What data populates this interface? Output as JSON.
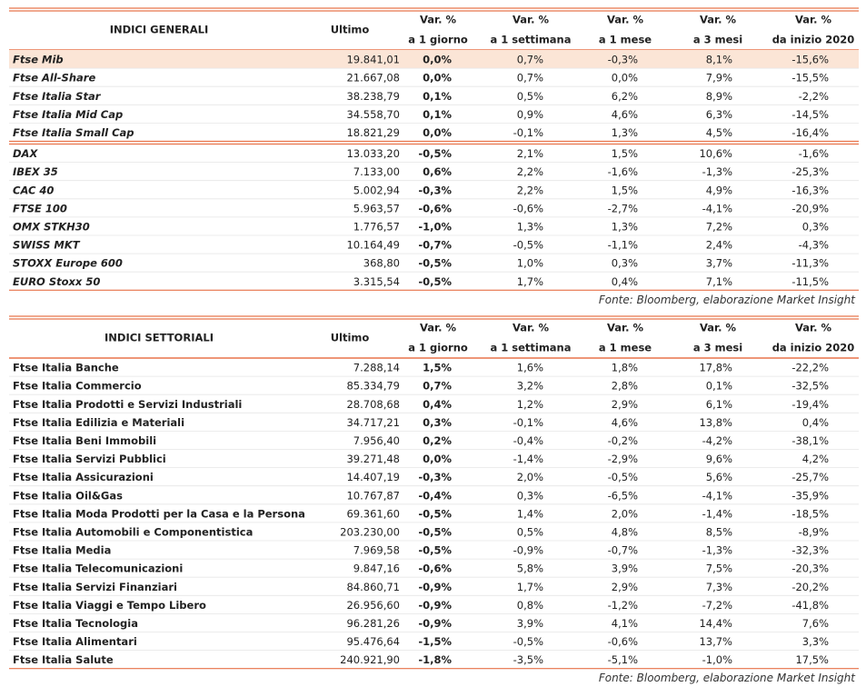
{
  "tables": [
    {
      "header": {
        "title": "INDICI GENERALI",
        "columns": [
          [
            "Ultimo"
          ],
          [
            "Var. %",
            "a 1 giorno"
          ],
          [
            "Var. %",
            "a 1 settimana"
          ],
          [
            "Var. %",
            "a 1 mese"
          ],
          [
            "Var. %",
            "a 3 mesi"
          ],
          [
            "Var. %",
            "da inizio 2020"
          ]
        ]
      },
      "groups": [
        [
          [
            "Ftse Mib",
            "19.841,01",
            "0,0%",
            "0,7%",
            "-0,3%",
            "8,1%",
            "-15,6%"
          ],
          [
            "Ftse All-Share",
            "21.667,08",
            "0,0%",
            "0,7%",
            "0,0%",
            "7,9%",
            "-15,5%"
          ],
          [
            "Ftse Italia Star",
            "38.238,79",
            "0,1%",
            "0,5%",
            "6,2%",
            "8,9%",
            "-2,2%"
          ],
          [
            "Ftse Italia Mid Cap",
            "34.558,70",
            "0,1%",
            "0,9%",
            "4,6%",
            "6,3%",
            "-14,5%"
          ],
          [
            "Ftse Italia Small Cap",
            "18.821,29",
            "0,0%",
            "-0,1%",
            "1,3%",
            "4,5%",
            "-16,4%"
          ]
        ],
        [
          [
            "DAX",
            "13.033,20",
            "-0,5%",
            "2,1%",
            "1,5%",
            "10,6%",
            "-1,6%"
          ],
          [
            "IBEX 35",
            "7.133,00",
            "0,6%",
            "2,2%",
            "-1,6%",
            "-1,3%",
            "-25,3%"
          ],
          [
            "CAC 40",
            "5.002,94",
            "-0,3%",
            "2,2%",
            "1,5%",
            "4,9%",
            "-16,3%"
          ],
          [
            "FTSE 100",
            "5.963,57",
            "-0,6%",
            "-0,6%",
            "-2,7%",
            "-4,1%",
            "-20,9%"
          ],
          [
            "OMX STKH30",
            "1.776,57",
            "-1,0%",
            "1,3%",
            "1,3%",
            "7,2%",
            "0,3%"
          ],
          [
            "SWISS MKT",
            "10.164,49",
            "-0,7%",
            "-0,5%",
            "-1,1%",
            "2,4%",
            "-4,3%"
          ],
          [
            "STOXX Europe 600",
            "368,80",
            "-0,5%",
            "1,0%",
            "0,3%",
            "3,7%",
            "-11,3%"
          ],
          [
            "EURO Stoxx 50",
            "3.315,54",
            "-0,5%",
            "1,7%",
            "0,4%",
            "7,1%",
            "-11,5%"
          ]
        ]
      ],
      "source": "Fonte: Bloomberg, elaborazione Market Insight"
    },
    {
      "header": {
        "title": "INDICI SETTORIALI",
        "columns": [
          [
            "Ultimo"
          ],
          [
            "Var. %",
            "a 1 giorno"
          ],
          [
            "Var. %",
            "a 1 settimana"
          ],
          [
            "Var. %",
            "a 1 mese"
          ],
          [
            "Var. %",
            "a 3 mesi"
          ],
          [
            "Var. %",
            "da inizio 2020"
          ]
        ]
      },
      "groups": [
        [
          [
            "Ftse Italia Banche",
            "7.288,14",
            "1,5%",
            "1,6%",
            "1,8%",
            "17,8%",
            "-22,2%"
          ],
          [
            "Ftse Italia Commercio",
            "85.334,79",
            "0,7%",
            "3,2%",
            "2,8%",
            "0,1%",
            "-32,5%"
          ],
          [
            "Ftse Italia Prodotti e Servizi Industriali",
            "28.708,68",
            "0,4%",
            "1,2%",
            "2,9%",
            "6,1%",
            "-19,4%"
          ],
          [
            "Ftse Italia Edilizia e Materiali",
            "34.717,21",
            "0,3%",
            "-0,1%",
            "4,6%",
            "13,8%",
            "0,4%"
          ],
          [
            "Ftse Italia Beni Immobili",
            "7.956,40",
            "0,2%",
            "-0,4%",
            "-0,2%",
            "-4,2%",
            "-38,1%"
          ],
          [
            "Ftse Italia Servizi Pubblici",
            "39.271,48",
            "0,0%",
            "-1,4%",
            "-2,9%",
            "9,6%",
            "4,2%"
          ],
          [
            "Ftse Italia Assicurazioni",
            "14.407,19",
            "-0,3%",
            "2,0%",
            "-0,5%",
            "5,6%",
            "-25,7%"
          ],
          [
            "Ftse Italia Oil&Gas",
            "10.767,87",
            "-0,4%",
            "0,3%",
            "-6,5%",
            "-4,1%",
            "-35,9%"
          ],
          [
            "Ftse Italia Moda Prodotti per la Casa e la Persona",
            "69.361,60",
            "-0,5%",
            "1,4%",
            "2,0%",
            "-1,4%",
            "-18,5%"
          ],
          [
            "Ftse Italia Automobili e Componentistica",
            "203.230,00",
            "-0,5%",
            "0,5%",
            "4,8%",
            "8,5%",
            "-8,9%"
          ],
          [
            "Ftse Italia Media",
            "7.969,58",
            "-0,5%",
            "-0,9%",
            "-0,7%",
            "-1,3%",
            "-32,3%"
          ],
          [
            "Ftse Italia Telecomunicazioni",
            "9.847,16",
            "-0,6%",
            "5,8%",
            "3,9%",
            "7,5%",
            "-20,3%"
          ],
          [
            "Ftse Italia Servizi Finanziari",
            "84.860,71",
            "-0,9%",
            "1,7%",
            "2,9%",
            "7,3%",
            "-20,2%"
          ],
          [
            "Ftse Italia Viaggi e Tempo Libero",
            "26.956,60",
            "-0,9%",
            "0,8%",
            "-1,2%",
            "-7,2%",
            "-41,8%"
          ],
          [
            "Ftse Italia Tecnologia",
            "96.281,26",
            "-0,9%",
            "3,9%",
            "4,1%",
            "14,4%",
            "7,6%"
          ],
          [
            "Ftse Italia Alimentari",
            "95.476,64",
            "-1,5%",
            "-0,5%",
            "-0,6%",
            "13,7%",
            "3,3%"
          ],
          [
            "Ftse Italia Salute",
            "240.921,90",
            "-1,8%",
            "-3,5%",
            "-5,1%",
            "-1,0%",
            "17,5%"
          ]
        ]
      ],
      "source": "Fonte: Bloomberg, elaborazione Market Insight"
    }
  ]
}
